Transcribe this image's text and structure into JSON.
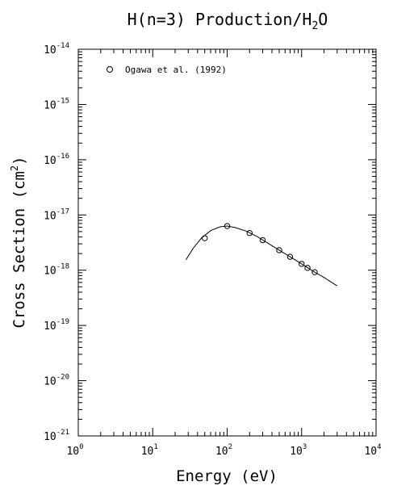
{
  "chart_data": {
    "type": "scatter",
    "title": "H(n=3) Production/H2O",
    "title_parts": {
      "pre": "H(n=3) Production/H",
      "sub": "2",
      "post": "O"
    },
    "xlabel": "Energy (eV)",
    "ylabel_parts": {
      "pre": "Cross Section (cm",
      "sup": "2",
      "post": ")"
    },
    "xscale": "log",
    "yscale": "log",
    "xlim": [
      1,
      10000
    ],
    "ylim": [
      1e-21,
      1e-14
    ],
    "x_ticks": [
      {
        "base": "10",
        "exp": "0"
      },
      {
        "base": "10",
        "exp": "1"
      },
      {
        "base": "10",
        "exp": "2"
      },
      {
        "base": "10",
        "exp": "3"
      },
      {
        "base": "10",
        "exp": "4"
      }
    ],
    "y_ticks": [
      {
        "base": "10",
        "exp": "-21"
      },
      {
        "base": "10",
        "exp": "-20"
      },
      {
        "base": "10",
        "exp": "-19"
      },
      {
        "base": "10",
        "exp": "-18"
      },
      {
        "base": "10",
        "exp": "-17"
      },
      {
        "base": "10",
        "exp": "-16"
      },
      {
        "base": "10",
        "exp": "-15"
      },
      {
        "base": "10",
        "exp": "-14"
      }
    ],
    "grid": false,
    "legend_position": "top-left",
    "series": [
      {
        "name": "Ogawa et al. (1992)",
        "marker": "open-circle",
        "x": [
          50,
          100,
          200,
          300,
          500,
          700,
          1000,
          1200,
          1500
        ],
        "y": [
          3.8e-18,
          6.3e-18,
          4.7e-18,
          3.5e-18,
          2.3e-18,
          1.75e-18,
          1.3e-18,
          1.1e-18,
          9.2e-19
        ]
      }
    ],
    "fit_curve": {
      "style": "solid-line",
      "x": [
        28,
        35,
        45,
        60,
        80,
        100,
        130,
        180,
        250,
        350,
        500,
        700,
        1000,
        1500,
        2000,
        3000
      ],
      "y": [
        1.55e-18,
        2.5e-18,
        3.8e-18,
        5.2e-18,
        6.1e-18,
        6.3e-18,
        5.9e-18,
        5.1e-18,
        4.1e-18,
        3.1e-18,
        2.3e-18,
        1.75e-18,
        1.3e-18,
        9.2e-19,
        7.4e-19,
        5.2e-19
      ]
    }
  }
}
